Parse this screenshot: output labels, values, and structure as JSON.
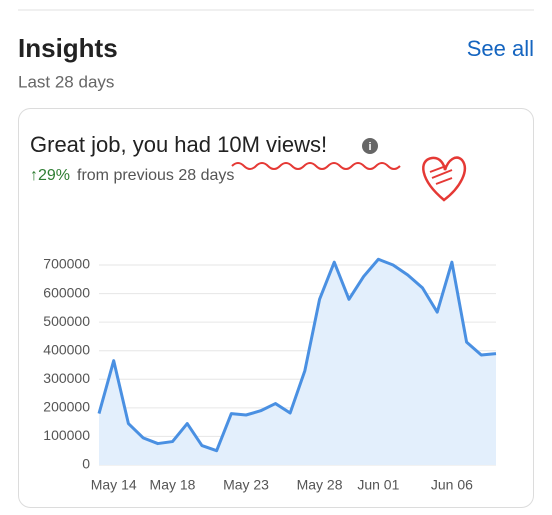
{
  "header": {
    "title": "Insights",
    "link": "See all",
    "subtitle": "Last 28 days"
  },
  "card": {
    "headline": "Great job, you had 10M views!",
    "change": "↑29%",
    "change_note": "from previous 28 days"
  },
  "chart_data": {
    "type": "area",
    "categories": [
      null,
      "May 14",
      null,
      null,
      null,
      "May 18",
      null,
      null,
      null,
      null,
      "May 23",
      null,
      null,
      null,
      null,
      "May 28",
      null,
      null,
      null,
      "Jun 01",
      null,
      null,
      null,
      null,
      "Jun 06",
      null,
      null,
      null
    ],
    "values": [
      180000,
      365000,
      145000,
      95000,
      75000,
      82000,
      145000,
      68000,
      50000,
      180000,
      175000,
      190000,
      215000,
      182000,
      330000,
      580000,
      710000,
      580000,
      660000,
      720000,
      700000,
      665000,
      620000,
      535000,
      710000,
      430000,
      385000,
      390000
    ],
    "color": "#4a90e2",
    "ylim": [
      0,
      750000
    ],
    "yticks": [
      0,
      100000,
      200000,
      300000,
      400000,
      500000,
      600000,
      700000
    ],
    "grid": true
  }
}
